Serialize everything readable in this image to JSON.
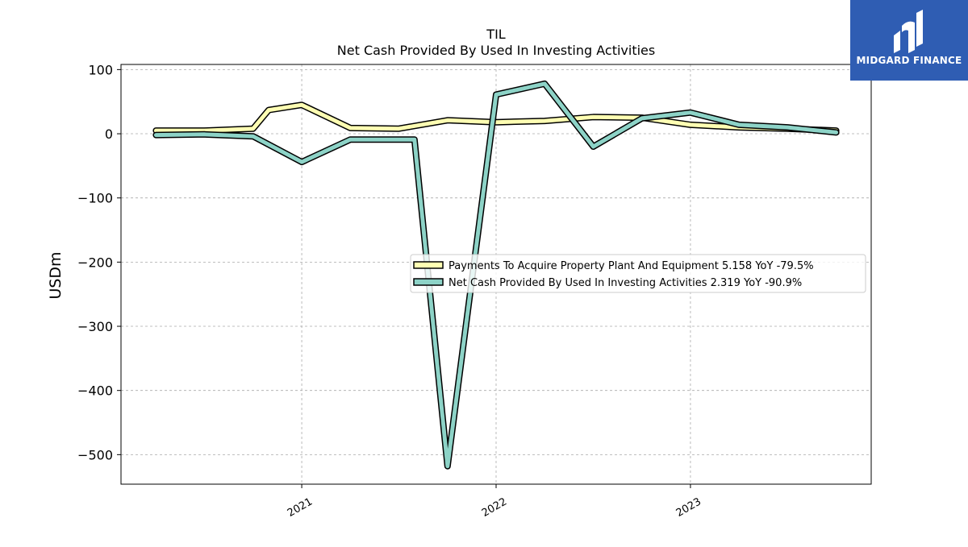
{
  "chart_data": {
    "type": "line",
    "ticker": "TIL",
    "title": "Net Cash Provided By Used In Investing Activities",
    "ylabel": "USDm",
    "ylim": [
      -546,
      108
    ],
    "yticks": [
      100,
      0,
      -100,
      -200,
      -300,
      -400,
      -500
    ],
    "ytick_labels": [
      "100",
      "0",
      "−100",
      "−200",
      "−300",
      "−400",
      "−500"
    ],
    "xlim": [
      2020.07,
      2023.93
    ],
    "xticks": [
      2021,
      2022,
      2023
    ],
    "xtick_labels": [
      "2021",
      "2022",
      "2023"
    ],
    "grid": true,
    "legend_position": "center-right",
    "series": [
      {
        "name": "Payments To Acquire Property Plant And Equipment  5.158 YoY -79.5%",
        "color": "#ffffb3",
        "x": [
          2020.25,
          2020.5,
          2020.75,
          2020.83,
          2021.0,
          2021.25,
          2021.5,
          2021.75,
          2022.0,
          2022.25,
          2022.5,
          2022.75,
          2023.0,
          2023.25,
          2023.5,
          2023.75
        ],
        "values": [
          5,
          5,
          8,
          37,
          45,
          9,
          8,
          21,
          18,
          20,
          26,
          25,
          14,
          10,
          8,
          5
        ]
      },
      {
        "name": "Net Cash Provided By Used In Investing Activities  2.319 YoY -90.9%",
        "color": "#8dd3c7",
        "x": [
          2020.25,
          2020.5,
          2020.75,
          2021.0,
          2021.25,
          2021.5,
          2021.58,
          2021.75,
          2022.0,
          2022.25,
          2022.5,
          2022.75,
          2023.0,
          2023.25,
          2023.5,
          2023.75
        ],
        "values": [
          -2,
          -1,
          -4,
          -44,
          -9,
          -9,
          -9,
          -518,
          61,
          78,
          -20,
          24,
          33,
          14,
          10,
          2
        ]
      }
    ]
  },
  "logo": {
    "text": "MIDGARD FINANCE"
  }
}
